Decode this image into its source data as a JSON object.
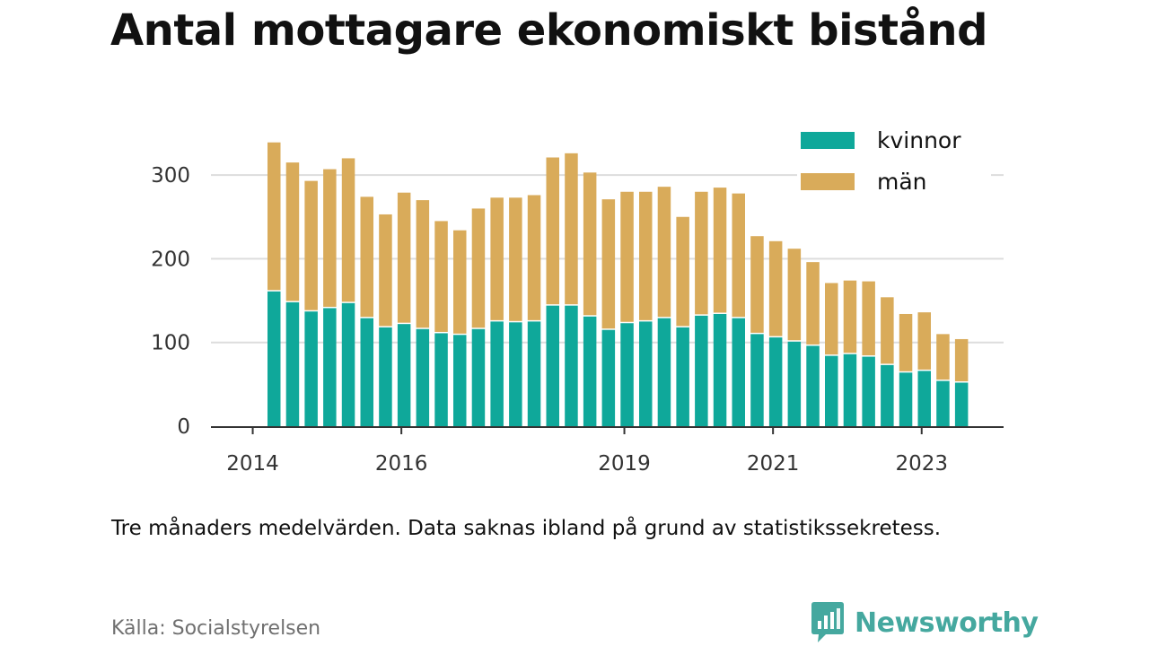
{
  "title": "Antal mottagare ekonomiskt bistånd",
  "note": "Tre månaders medelvärden. Data saknas ibland på grund av statistikssekretess.",
  "source": "Källa: Socialstyrelsen",
  "brand": {
    "name": "Newsworthy",
    "color": "#45a89f",
    "icon": "chart-bubble-icon"
  },
  "chart_data": {
    "type": "bar",
    "stacked": true,
    "ylim": [
      0,
      350
    ],
    "yticks": [
      0,
      100,
      200,
      300
    ],
    "grid": true,
    "legend_position": "top-right",
    "x": [
      "2014-04",
      "2014-07",
      "2014-10",
      "2015-01",
      "2015-04",
      "2015-07",
      "2015-10",
      "2016-01",
      "2016-04",
      "2016-07",
      "2016-10",
      "2017-01",
      "2017-04",
      "2017-07",
      "2017-10",
      "2018-01",
      "2018-04",
      "2018-07",
      "2018-10",
      "2019-01",
      "2019-04",
      "2019-07",
      "2019-10",
      "2020-01",
      "2020-04",
      "2020-07",
      "2020-10",
      "2021-01",
      "2021-04",
      "2021-07",
      "2021-10",
      "2022-01",
      "2022-04",
      "2022-07",
      "2022-10",
      "2023-01",
      "2023-04",
      "2023-07"
    ],
    "xticks": [
      {
        "label": "2014",
        "at": "2014-01"
      },
      {
        "label": "2016",
        "at": "2016-01"
      },
      {
        "label": "2019",
        "at": "2019-01"
      },
      {
        "label": "2021",
        "at": "2021-01"
      },
      {
        "label": "2023",
        "at": "2023-01"
      }
    ],
    "series": [
      {
        "name": "kvinnor",
        "color": "#0fa89a",
        "values": [
          161,
          148,
          137,
          141,
          147,
          129,
          118,
          122,
          116,
          111,
          109,
          116,
          125,
          124,
          125,
          144,
          144,
          131,
          115,
          123,
          125,
          129,
          118,
          132,
          134,
          129,
          110,
          106,
          101,
          96,
          84,
          86,
          83,
          73,
          64,
          66,
          54,
          52
        ]
      },
      {
        "name": "män",
        "color": "#d9ab5a",
        "values": [
          178,
          167,
          156,
          166,
          173,
          145,
          135,
          157,
          154,
          134,
          125,
          144,
          148,
          149,
          151,
          177,
          182,
          172,
          156,
          157,
          155,
          157,
          132,
          148,
          151,
          149,
          117,
          115,
          111,
          100,
          87,
          88,
          90,
          81,
          70,
          70,
          56,
          52
        ]
      }
    ]
  }
}
